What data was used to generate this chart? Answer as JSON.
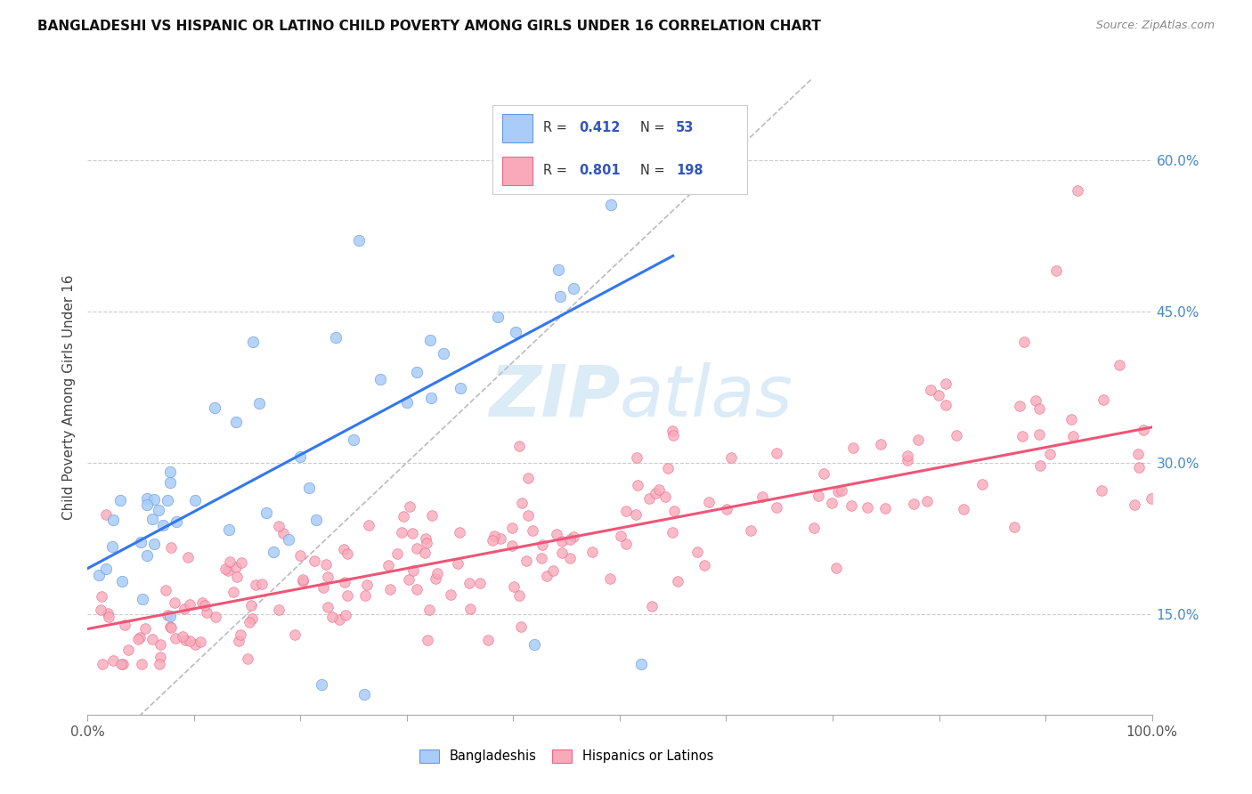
{
  "title": "BANGLADESHI VS HISPANIC OR LATINO CHILD POVERTY AMONG GIRLS UNDER 16 CORRELATION CHART",
  "source": "Source: ZipAtlas.com",
  "ylabel": "Child Poverty Among Girls Under 16",
  "ytick_labels": [
    "15.0%",
    "30.0%",
    "45.0%",
    "60.0%"
  ],
  "ytick_values": [
    0.15,
    0.3,
    0.45,
    0.6
  ],
  "xlim": [
    0.0,
    1.0
  ],
  "ylim": [
    0.05,
    0.68
  ],
  "color_bangladeshi_fill": "#aaccf8",
  "color_bangladeshi_edge": "#6699dd",
  "color_hispanic_fill": "#f8aabb",
  "color_hispanic_edge": "#ee6688",
  "color_line_bangladeshi": "#3377ee",
  "color_line_hispanic": "#ee5577",
  "color_diagonal": "#bbbbbb",
  "color_grid": "#cccccc",
  "watermark_color": "#cce4f5",
  "background_color": "#ffffff",
  "legend_r1_val": "0.412",
  "legend_n1_val": "53",
  "legend_r2_val": "0.801",
  "legend_n2_val": "198",
  "legend_color": "#3355bb",
  "bang_line_x0": 0.0,
  "bang_line_y0": 0.195,
  "bang_line_x1": 0.55,
  "bang_line_y1": 0.505,
  "hisp_line_x0": 0.0,
  "hisp_line_y0": 0.135,
  "hisp_line_x1": 1.0,
  "hisp_line_y1": 0.335
}
